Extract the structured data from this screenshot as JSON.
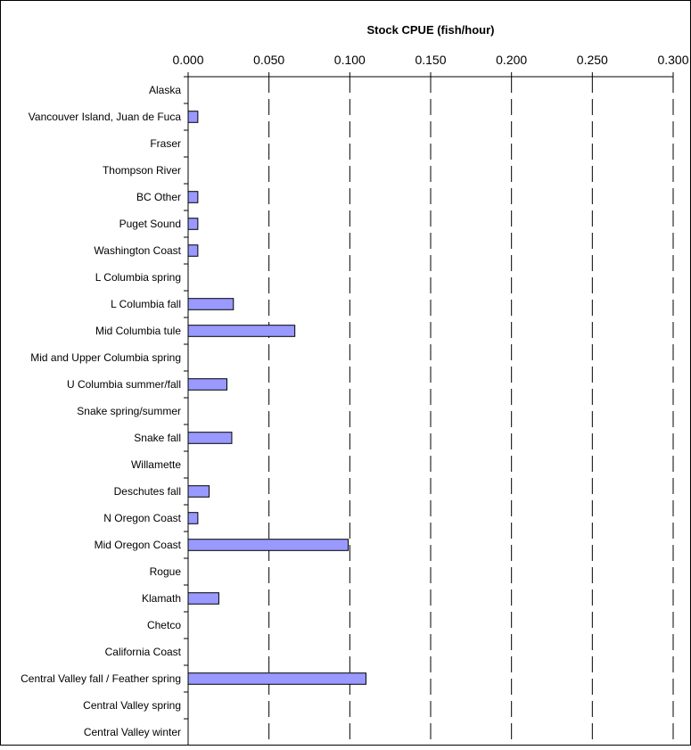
{
  "chart_data": {
    "type": "bar",
    "orientation": "horizontal",
    "title": "Stock CPUE (fish/hour)",
    "xlabel": "Stock CPUE (fish/hour)",
    "ylabel": "",
    "xlim": [
      0,
      0.3
    ],
    "x_ticks": [
      "0.000",
      "0.050",
      "0.100",
      "0.150",
      "0.200",
      "0.250",
      "0.300"
    ],
    "x_axis_position": "top",
    "gridlines": "vertical dashed",
    "legend": "none",
    "bar_color": "#9999ff",
    "bar_edge_color": "#000000",
    "categories": [
      "Alaska",
      "Vancouver Island, Juan de Fuca",
      "Fraser",
      "Thompson River",
      "BC Other",
      "Puget Sound",
      "Washington Coast",
      "L Columbia spring",
      "L Columbia fall",
      "Mid Columbia tule",
      "Mid and Upper Columbia spring",
      "U Columbia summer/fall",
      "Snake spring/summer",
      "Snake fall",
      "Willamette",
      "Deschutes fall",
      "N Oregon Coast",
      "Mid Oregon Coast",
      "Rogue",
      "Klamath",
      "Chetco",
      "California Coast",
      "Central Valley fall / Feather spring",
      "Central Valley spring",
      "Central Valley winter"
    ],
    "values": [
      0,
      0.006,
      0,
      0,
      0.006,
      0.006,
      0.006,
      0,
      0.028,
      0.066,
      0,
      0.024,
      0,
      0.027,
      0,
      0.013,
      0.006,
      0.099,
      0,
      0.019,
      0,
      0,
      0.11,
      0,
      0
    ]
  }
}
